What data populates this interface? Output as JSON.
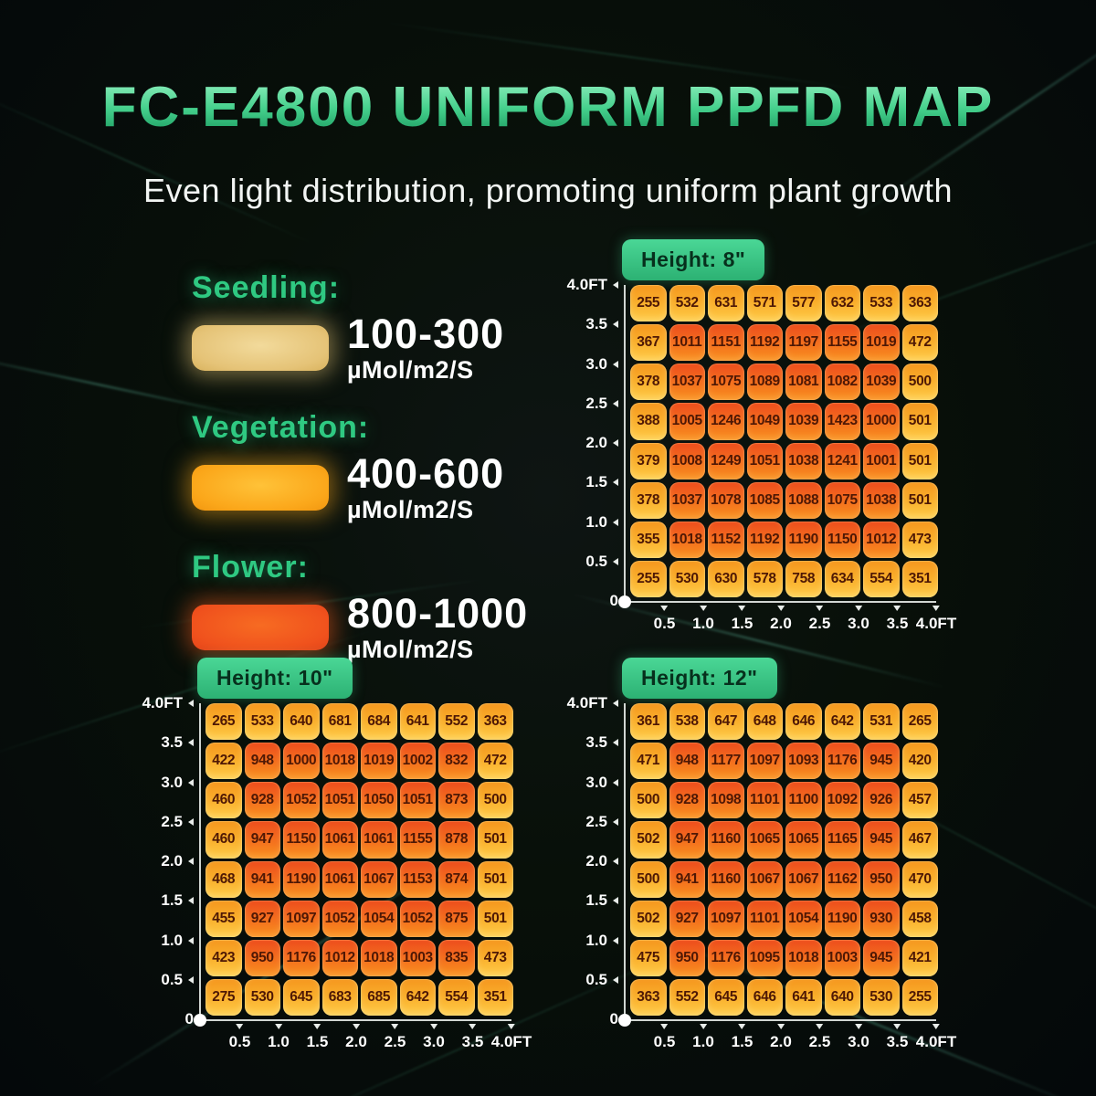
{
  "title": "FC-E4800 UNIFORM PPFD MAP",
  "subtitle": "Even light distribution, promoting uniform plant growth",
  "colors": {
    "accent_green": "#2fc982",
    "badge_green": "#3bcd8b",
    "seedling_swatch": "#e8c87f",
    "vegetation_swatch": "#fba71c",
    "flower_swatch": "#f0521d",
    "cell_low": "#fbbd37",
    "cell_high": "#f05a1f",
    "cell_text": "#4e1805"
  },
  "legend": {
    "items": [
      {
        "label": "Seedling:",
        "range": "100-300",
        "unit": "µMol/m2/S",
        "swatch": "seedling"
      },
      {
        "label": "Vegetation:",
        "range": "400-600",
        "unit": "µMol/m2/S",
        "swatch": "vegetation"
      },
      {
        "label": "Flower:",
        "range": "800-1000",
        "unit": "µMol/m2/S",
        "swatch": "flower"
      }
    ]
  },
  "axis": {
    "x_ticks": [
      "0.5",
      "1.0",
      "1.5",
      "2.0",
      "2.5",
      "3.0",
      "3.5",
      "4.0FT"
    ],
    "y_ticks": [
      "4.0FT",
      "3.5",
      "3.0",
      "2.5",
      "2.0",
      "1.5",
      "1.0",
      "0.5",
      "0"
    ]
  },
  "chart_data": [
    {
      "type": "heatmap",
      "title": "Height: 8\"",
      "unit": "µMol/m2/S",
      "x_range_ft": [
        0,
        4
      ],
      "y_range_ft": [
        0,
        4
      ],
      "x_ticks": [
        "0.5",
        "1.0",
        "1.5",
        "2.0",
        "2.5",
        "3.0",
        "3.5",
        "4.0FT"
      ],
      "y_ticks": [
        "4.0FT",
        "3.5",
        "3.0",
        "2.5",
        "2.0",
        "1.5",
        "1.0",
        "0.5",
        "0"
      ],
      "values": [
        [
          255,
          532,
          631,
          571,
          577,
          632,
          533,
          363
        ],
        [
          367,
          1011,
          1151,
          1192,
          1197,
          1155,
          1019,
          472
        ],
        [
          378,
          1037,
          1075,
          1089,
          1081,
          1082,
          1039,
          500
        ],
        [
          388,
          1005,
          1246,
          1049,
          1039,
          1423,
          1000,
          501
        ],
        [
          379,
          1008,
          1249,
          1051,
          1038,
          1241,
          1001,
          501
        ],
        [
          378,
          1037,
          1078,
          1085,
          1088,
          1075,
          1038,
          501
        ],
        [
          355,
          1018,
          1152,
          1192,
          1190,
          1150,
          1012,
          473
        ],
        [
          255,
          530,
          630,
          578,
          758,
          634,
          554,
          351
        ]
      ]
    },
    {
      "type": "heatmap",
      "title": "Height: 10\"",
      "unit": "µMol/m2/S",
      "x_range_ft": [
        0,
        4
      ],
      "y_range_ft": [
        0,
        4
      ],
      "x_ticks": [
        "0.5",
        "1.0",
        "1.5",
        "2.0",
        "2.5",
        "3.0",
        "3.5",
        "4.0FT"
      ],
      "y_ticks": [
        "4.0FT",
        "3.5",
        "3.0",
        "2.5",
        "2.0",
        "1.5",
        "1.0",
        "0.5",
        "0"
      ],
      "values": [
        [
          265,
          533,
          640,
          681,
          684,
          641,
          552,
          363
        ],
        [
          422,
          948,
          1000,
          1018,
          1019,
          1002,
          832,
          472
        ],
        [
          460,
          928,
          1052,
          1051,
          1050,
          1051,
          873,
          500
        ],
        [
          460,
          947,
          1150,
          1061,
          1061,
          1155,
          878,
          501
        ],
        [
          468,
          941,
          1190,
          1061,
          1067,
          1153,
          874,
          501
        ],
        [
          455,
          927,
          1097,
          1052,
          1054,
          1052,
          875,
          501
        ],
        [
          423,
          950,
          1176,
          1012,
          1018,
          1003,
          835,
          473
        ],
        [
          275,
          530,
          645,
          683,
          685,
          642,
          554,
          351
        ]
      ]
    },
    {
      "type": "heatmap",
      "title": "Height: 12\"",
      "unit": "µMol/m2/S",
      "x_range_ft": [
        0,
        4
      ],
      "y_range_ft": [
        0,
        4
      ],
      "x_ticks": [
        "0.5",
        "1.0",
        "1.5",
        "2.0",
        "2.5",
        "3.0",
        "3.5",
        "4.0FT"
      ],
      "y_ticks": [
        "4.0FT",
        "3.5",
        "3.0",
        "2.5",
        "2.0",
        "1.5",
        "1.0",
        "0.5",
        "0"
      ],
      "values": [
        [
          361,
          538,
          647,
          648,
          646,
          642,
          531,
          265
        ],
        [
          471,
          948,
          1177,
          1097,
          1093,
          1176,
          945,
          420
        ],
        [
          500,
          928,
          1098,
          1101,
          1100,
          1092,
          926,
          457
        ],
        [
          502,
          947,
          1160,
          1065,
          1065,
          1165,
          945,
          467
        ],
        [
          500,
          941,
          1160,
          1067,
          1067,
          1162,
          950,
          470
        ],
        [
          502,
          927,
          1097,
          1101,
          1054,
          1190,
          930,
          458
        ],
        [
          475,
          950,
          1176,
          1095,
          1018,
          1003,
          945,
          421
        ],
        [
          363,
          552,
          645,
          646,
          641,
          640,
          530,
          255
        ]
      ]
    }
  ]
}
